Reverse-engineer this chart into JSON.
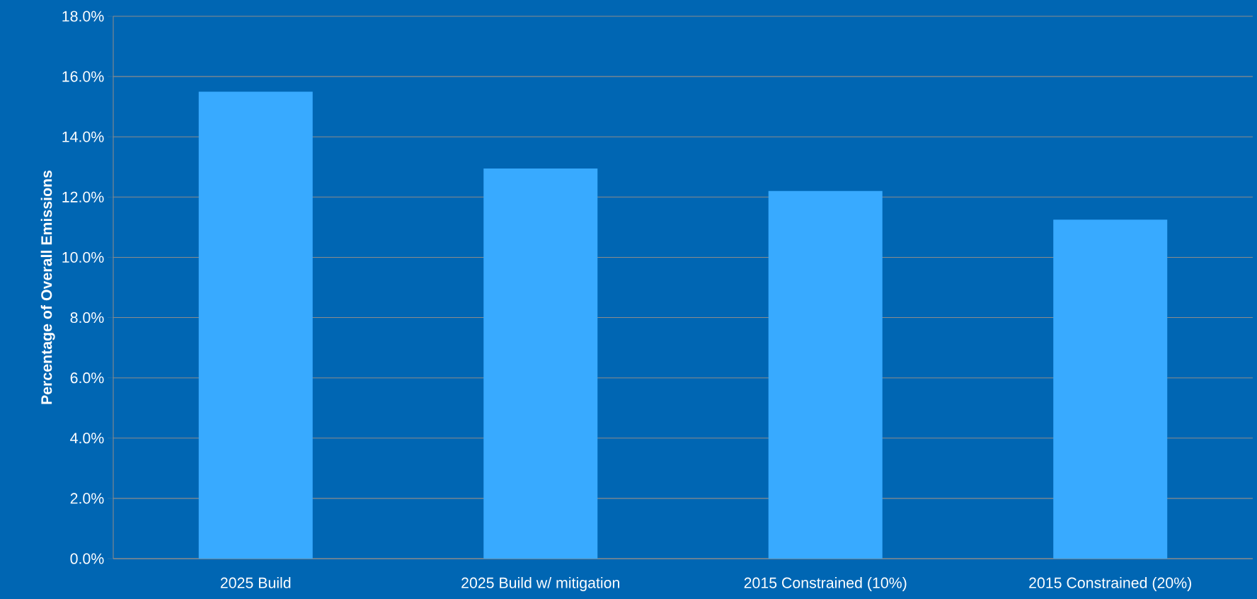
{
  "chart_data": {
    "type": "bar",
    "ylabel": "Percentage of Overall Emissions",
    "categories": [
      "2025 Build",
      "2025 Build w/ mitigation",
      "2015 Constrained (10%)",
      "2015 Constrained (20%)"
    ],
    "values": [
      15.5,
      12.95,
      12.2,
      11.25
    ],
    "color": "#38aaff",
    "ylim": [
      0,
      18
    ],
    "yticks": [
      {
        "value": 0,
        "label": "0.0%"
      },
      {
        "value": 2,
        "label": "2.0%"
      },
      {
        "value": 4,
        "label": "4.0%"
      },
      {
        "value": 6,
        "label": "6.0%"
      },
      {
        "value": 8,
        "label": "8.0%"
      },
      {
        "value": 10,
        "label": "10.0%"
      },
      {
        "value": 12,
        "label": "12.0%"
      },
      {
        "value": 14,
        "label": "14.0%"
      },
      {
        "value": 16,
        "label": "16.0%"
      },
      {
        "value": 18,
        "label": "18.0%"
      }
    ],
    "grid": "y"
  }
}
